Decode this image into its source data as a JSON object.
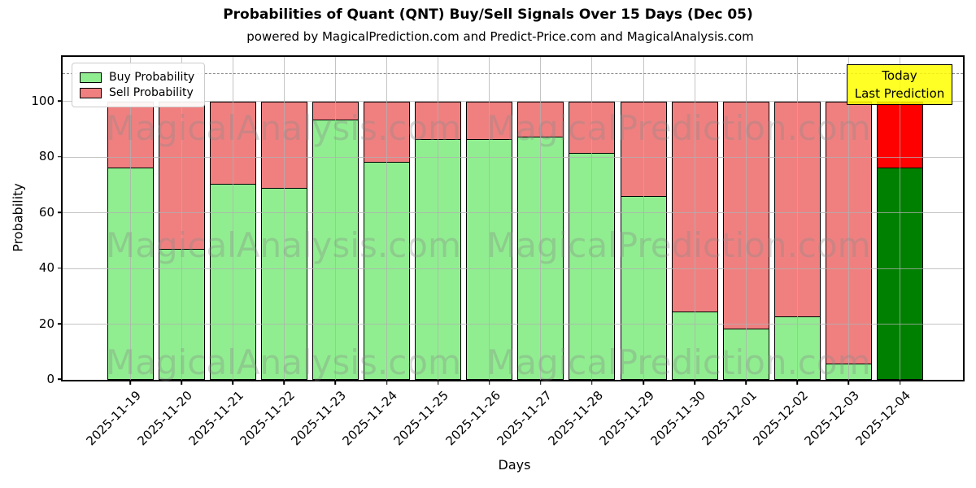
{
  "header": {
    "title": "Probabilities of Quant (QNT) Buy/Sell Signals Over 15 Days (Dec 05)",
    "subtitle": "powered by MagicalPrediction.com and Predict-Price.com and MagicalAnalysis.com"
  },
  "legend": {
    "buy_label": "Buy Probability",
    "sell_label": "Sell Probability"
  },
  "annotation": {
    "line1": "Today",
    "line2": "Last Prediction"
  },
  "axes": {
    "ylabel": "Probability",
    "xlabel": "Days",
    "yticks": [
      0,
      20,
      40,
      60,
      80,
      100
    ]
  },
  "watermarks": {
    "left_text": "MagicalAnalysis.com",
    "right_text": "MagicalPrediction.com"
  },
  "colors": {
    "buy": "#90EE90",
    "sell": "#F08080",
    "today_buy": "#008000",
    "today_sell": "#FF0000",
    "bar_edge": "#000000",
    "annotation_bg": "#FFFF00",
    "grid": "#b0b0b0"
  },
  "chart_data": {
    "type": "bar",
    "stacked": true,
    "title": "Probabilities of Quant (QNT) Buy/Sell Signals Over 15 Days (Dec 05)",
    "xlabel": "Days",
    "ylabel": "Probability",
    "ylim": [
      0,
      116
    ],
    "grid": true,
    "legend_position": "upper left",
    "dashed_line_y": 110,
    "today_index": 15,
    "categories": [
      "2025-11-19",
      "2025-11-20",
      "2025-11-21",
      "2025-11-22",
      "2025-11-23",
      "2025-11-24",
      "2025-11-25",
      "2025-11-26",
      "2025-11-27",
      "2025-11-28",
      "2025-11-29",
      "2025-11-30",
      "2025-12-01",
      "2025-12-02",
      "2025-12-03",
      "2025-12-04"
    ],
    "series": [
      {
        "name": "Buy Probability",
        "values": [
          76.5,
          47,
          70.5,
          69,
          93.5,
          78.5,
          86.5,
          86.5,
          87.5,
          81.5,
          66,
          24.5,
          18.5,
          23,
          6,
          76.5
        ]
      },
      {
        "name": "Sell Probability",
        "values": [
          23.5,
          53,
          29.5,
          31,
          6.5,
          21.5,
          13.5,
          13.5,
          12.5,
          18.5,
          34,
          75.5,
          81.5,
          77,
          94,
          23.5
        ]
      }
    ]
  }
}
